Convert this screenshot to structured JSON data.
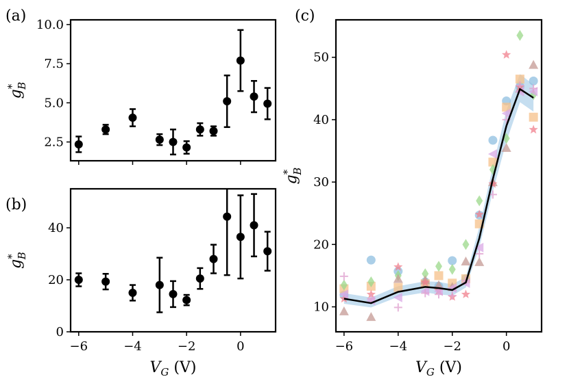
{
  "chart_data": [
    {
      "type": "scatter",
      "panel_label": "(a)",
      "ylabel_base": "g",
      "ylabel_sup": "*",
      "ylabel_sub": "B",
      "xlim": [
        -6.3,
        1.3
      ],
      "ylim": [
        1.3,
        10.3
      ],
      "xticks": [
        -6,
        -4,
        -2,
        0
      ],
      "xtick_labels": [],
      "yticks": [
        2.5,
        5.0,
        7.5,
        10.0
      ],
      "ytick_labels": [
        "2.5",
        "5.0",
        "7.5",
        "10.0"
      ],
      "series": [
        {
          "name": "mean with error bars",
          "x": [
            -6,
            -5,
            -4,
            -3,
            -2.5,
            -2,
            -1.5,
            -1,
            -0.5,
            0,
            0.5,
            1
          ],
          "y": [
            2.35,
            3.3,
            4.05,
            2.65,
            2.5,
            2.15,
            3.3,
            3.2,
            5.1,
            7.7,
            5.4,
            4.95
          ],
          "yerr": [
            0.5,
            0.3,
            0.55,
            0.35,
            0.8,
            0.4,
            0.4,
            0.3,
            1.65,
            1.95,
            1.0,
            1.0
          ]
        }
      ]
    },
    {
      "type": "scatter",
      "panel_label": "(b)",
      "ylabel_base": "g",
      "ylabel_sup": "*",
      "ylabel_sub": "B",
      "xlim": [
        -6.3,
        1.3
      ],
      "ylim": [
        0,
        55
      ],
      "xticks": [
        -6,
        -4,
        -2,
        0
      ],
      "xtick_labels": [
        "−6",
        "−4",
        "−2",
        "0"
      ],
      "xlabel_base": "V",
      "xlabel_sub": "G",
      "xlabel_unit": " (V)",
      "yticks": [
        0,
        20,
        40
      ],
      "ytick_labels": [
        "0",
        "20",
        "40"
      ],
      "series": [
        {
          "name": "mean with error bars",
          "x": [
            -6,
            -5,
            -4,
            -3,
            -2.5,
            -2,
            -1.5,
            -1,
            -0.5,
            0,
            0.5,
            1
          ],
          "y": [
            20,
            19.3,
            15,
            18,
            14.5,
            12.2,
            20.5,
            28,
            44.3,
            36.5,
            41,
            31
          ],
          "yerr": [
            2.5,
            3,
            3,
            10.5,
            5,
            2,
            4,
            5.5,
            22.5,
            16,
            12,
            7.5
          ]
        }
      ]
    },
    {
      "type": "line",
      "panel_label": "(c)",
      "ylabel_base": "g",
      "ylabel_sup": "*",
      "ylabel_sub": "B",
      "xlim": [
        -6.3,
        1.3
      ],
      "ylim": [
        6,
        56
      ],
      "xticks": [
        -6,
        -4,
        -2,
        0
      ],
      "xtick_labels": [
        "−6",
        "−4",
        "−2",
        "0"
      ],
      "xlabel_base": "V",
      "xlabel_sub": "G",
      "xlabel_unit": " (V)",
      "yticks": [
        10,
        20,
        30,
        40,
        50
      ],
      "ytick_labels": [
        "10",
        "20",
        "30",
        "40",
        "50"
      ],
      "mean_line": {
        "color": "#000000",
        "x": [
          -6,
          -5,
          -4,
          -3,
          -2.5,
          -2,
          -1.5,
          -1,
          -0.5,
          0,
          0.5,
          1
        ],
        "y": [
          11.3,
          10.6,
          12.4,
          13.2,
          13.0,
          12.7,
          13.9,
          21.0,
          30.5,
          39.0,
          44.9,
          43.5
        ]
      },
      "band": {
        "color": "#9ec8e6",
        "lower": [
          10.5,
          9.9,
          11.6,
          12.3,
          12.0,
          11.8,
          13.1,
          19.5,
          28.5,
          36.5,
          42.8,
          41.3
        ],
        "upper": [
          12.2,
          11.5,
          13.3,
          14.1,
          14.0,
          13.6,
          14.8,
          22.8,
          32.5,
          41.5,
          47.3,
          45.6
        ]
      },
      "scatter_series": [
        {
          "name": "circles",
          "marker": "circle",
          "color": "#8fbfe0",
          "x": [
            -6,
            -5,
            -4,
            -3,
            -2.5,
            -2,
            -1.5,
            -1,
            -0.5,
            0,
            0.5,
            1
          ],
          "y": [
            11.9,
            17.5,
            15.7,
            14.0,
            13.3,
            17.4,
            14.5,
            24.7,
            36.7,
            43.0,
            45.3,
            46.2
          ]
        },
        {
          "name": "squares",
          "marker": "square",
          "color": "#f5c089",
          "x": [
            -6,
            -5,
            -4,
            -3,
            -2.5,
            -2,
            -1.5,
            -1,
            -0.5,
            0,
            0.5,
            1
          ],
          "y": [
            12.9,
            13.3,
            13.1,
            13.7,
            15.0,
            13.8,
            14.5,
            23.3,
            33.2,
            42.0,
            46.5,
            40.4
          ]
        },
        {
          "name": "diamonds",
          "marker": "diamond",
          "color": "#9bd88a",
          "x": [
            -6,
            -5,
            -4,
            -3,
            -2.5,
            -2,
            -1.5,
            -1,
            -0.5,
            0,
            0.5,
            1
          ],
          "y": [
            13.5,
            14.0,
            15.0,
            15.3,
            16.5,
            16.0,
            20.0,
            27.0,
            32.0,
            37.0,
            53.5,
            44.0
          ]
        },
        {
          "name": "triangles",
          "marker": "triangle",
          "color": "#c49a94",
          "x": [
            -6,
            -5,
            -4,
            -3,
            -2.5,
            -2,
            -1.5,
            -1,
            -0.5,
            0,
            0.5,
            1
          ],
          "y": [
            9.3,
            8.4,
            14.5,
            14.3,
            13.5,
            13.2,
            17.3,
            17.2,
            30.0,
            35.5,
            45.0,
            48.8
          ]
        },
        {
          "name": "stars",
          "marker": "star",
          "color": "#f07f8c",
          "x": [
            -6,
            -5,
            -4,
            -3,
            -2.5,
            -2,
            -1.5,
            -1,
            -0.5,
            0,
            0.5,
            1
          ],
          "y": [
            11.3,
            12.0,
            16.4,
            13.9,
            12.6,
            11.6,
            12.0,
            24.8,
            29.7,
            50.4,
            45.2,
            38.4
          ]
        },
        {
          "name": "left-triangles",
          "marker": "tri-left",
          "color": "#d9a8e6",
          "x": [
            -6,
            -5,
            -4,
            -3,
            -2.5,
            -2,
            -1.5,
            -1,
            -0.5,
            0,
            0.5,
            1
          ],
          "y": [
            12.0,
            11.0,
            11.5,
            12.5,
            12.5,
            13.0,
            13.8,
            19.5,
            34.5,
            41.0,
            44.5,
            44.5
          ]
        },
        {
          "name": "plus",
          "marker": "plus",
          "color": "#e0a3cf",
          "x": [
            -6,
            -5,
            -4,
            -3,
            -2.5,
            -2,
            -1.5,
            -1,
            -0.5,
            0,
            0.5,
            1
          ],
          "y": [
            14.9,
            11.3,
            9.9,
            12.2,
            12.0,
            11.8,
            14.2,
            18.5,
            28.0,
            40.0,
            45.5,
            45.0
          ]
        }
      ]
    }
  ]
}
